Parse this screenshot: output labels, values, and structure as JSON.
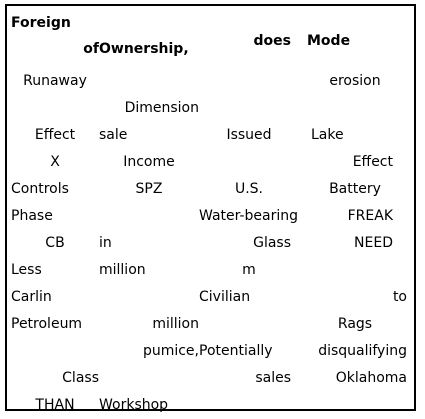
{
  "header": {
    "col1_line1": "Foreign",
    "col1_line2": "of",
    "col2": "Ownership,",
    "col3": "does",
    "col4": "Mode"
  },
  "rows": [
    [
      "Runaway",
      "",
      "",
      "erosion"
    ],
    [
      "",
      "Dimension",
      "",
      ""
    ],
    [
      "Effect",
      "sale",
      "Issued",
      "Lake"
    ],
    [
      "X",
      "Income",
      "",
      "Effect"
    ],
    [
      "Controls",
      "SPZ",
      "U.S.",
      "Battery"
    ],
    [
      "Phase",
      "",
      "Water-bearing",
      "FREAK"
    ],
    [
      "CB",
      "in",
      "Glass",
      "NEED"
    ],
    [
      "Less",
      "million",
      "m",
      ""
    ],
    [
      "Carlin",
      "",
      "Civilian",
      "to"
    ],
    [
      "Petroleum",
      "million",
      "",
      "Rags"
    ],
    [
      "",
      "pumice,",
      "Potentially",
      "disqualifying"
    ],
    [
      "Class",
      "",
      "sales",
      "Oklahoma"
    ],
    [
      "THAN",
      "Workshop",
      "",
      ""
    ]
  ]
}
